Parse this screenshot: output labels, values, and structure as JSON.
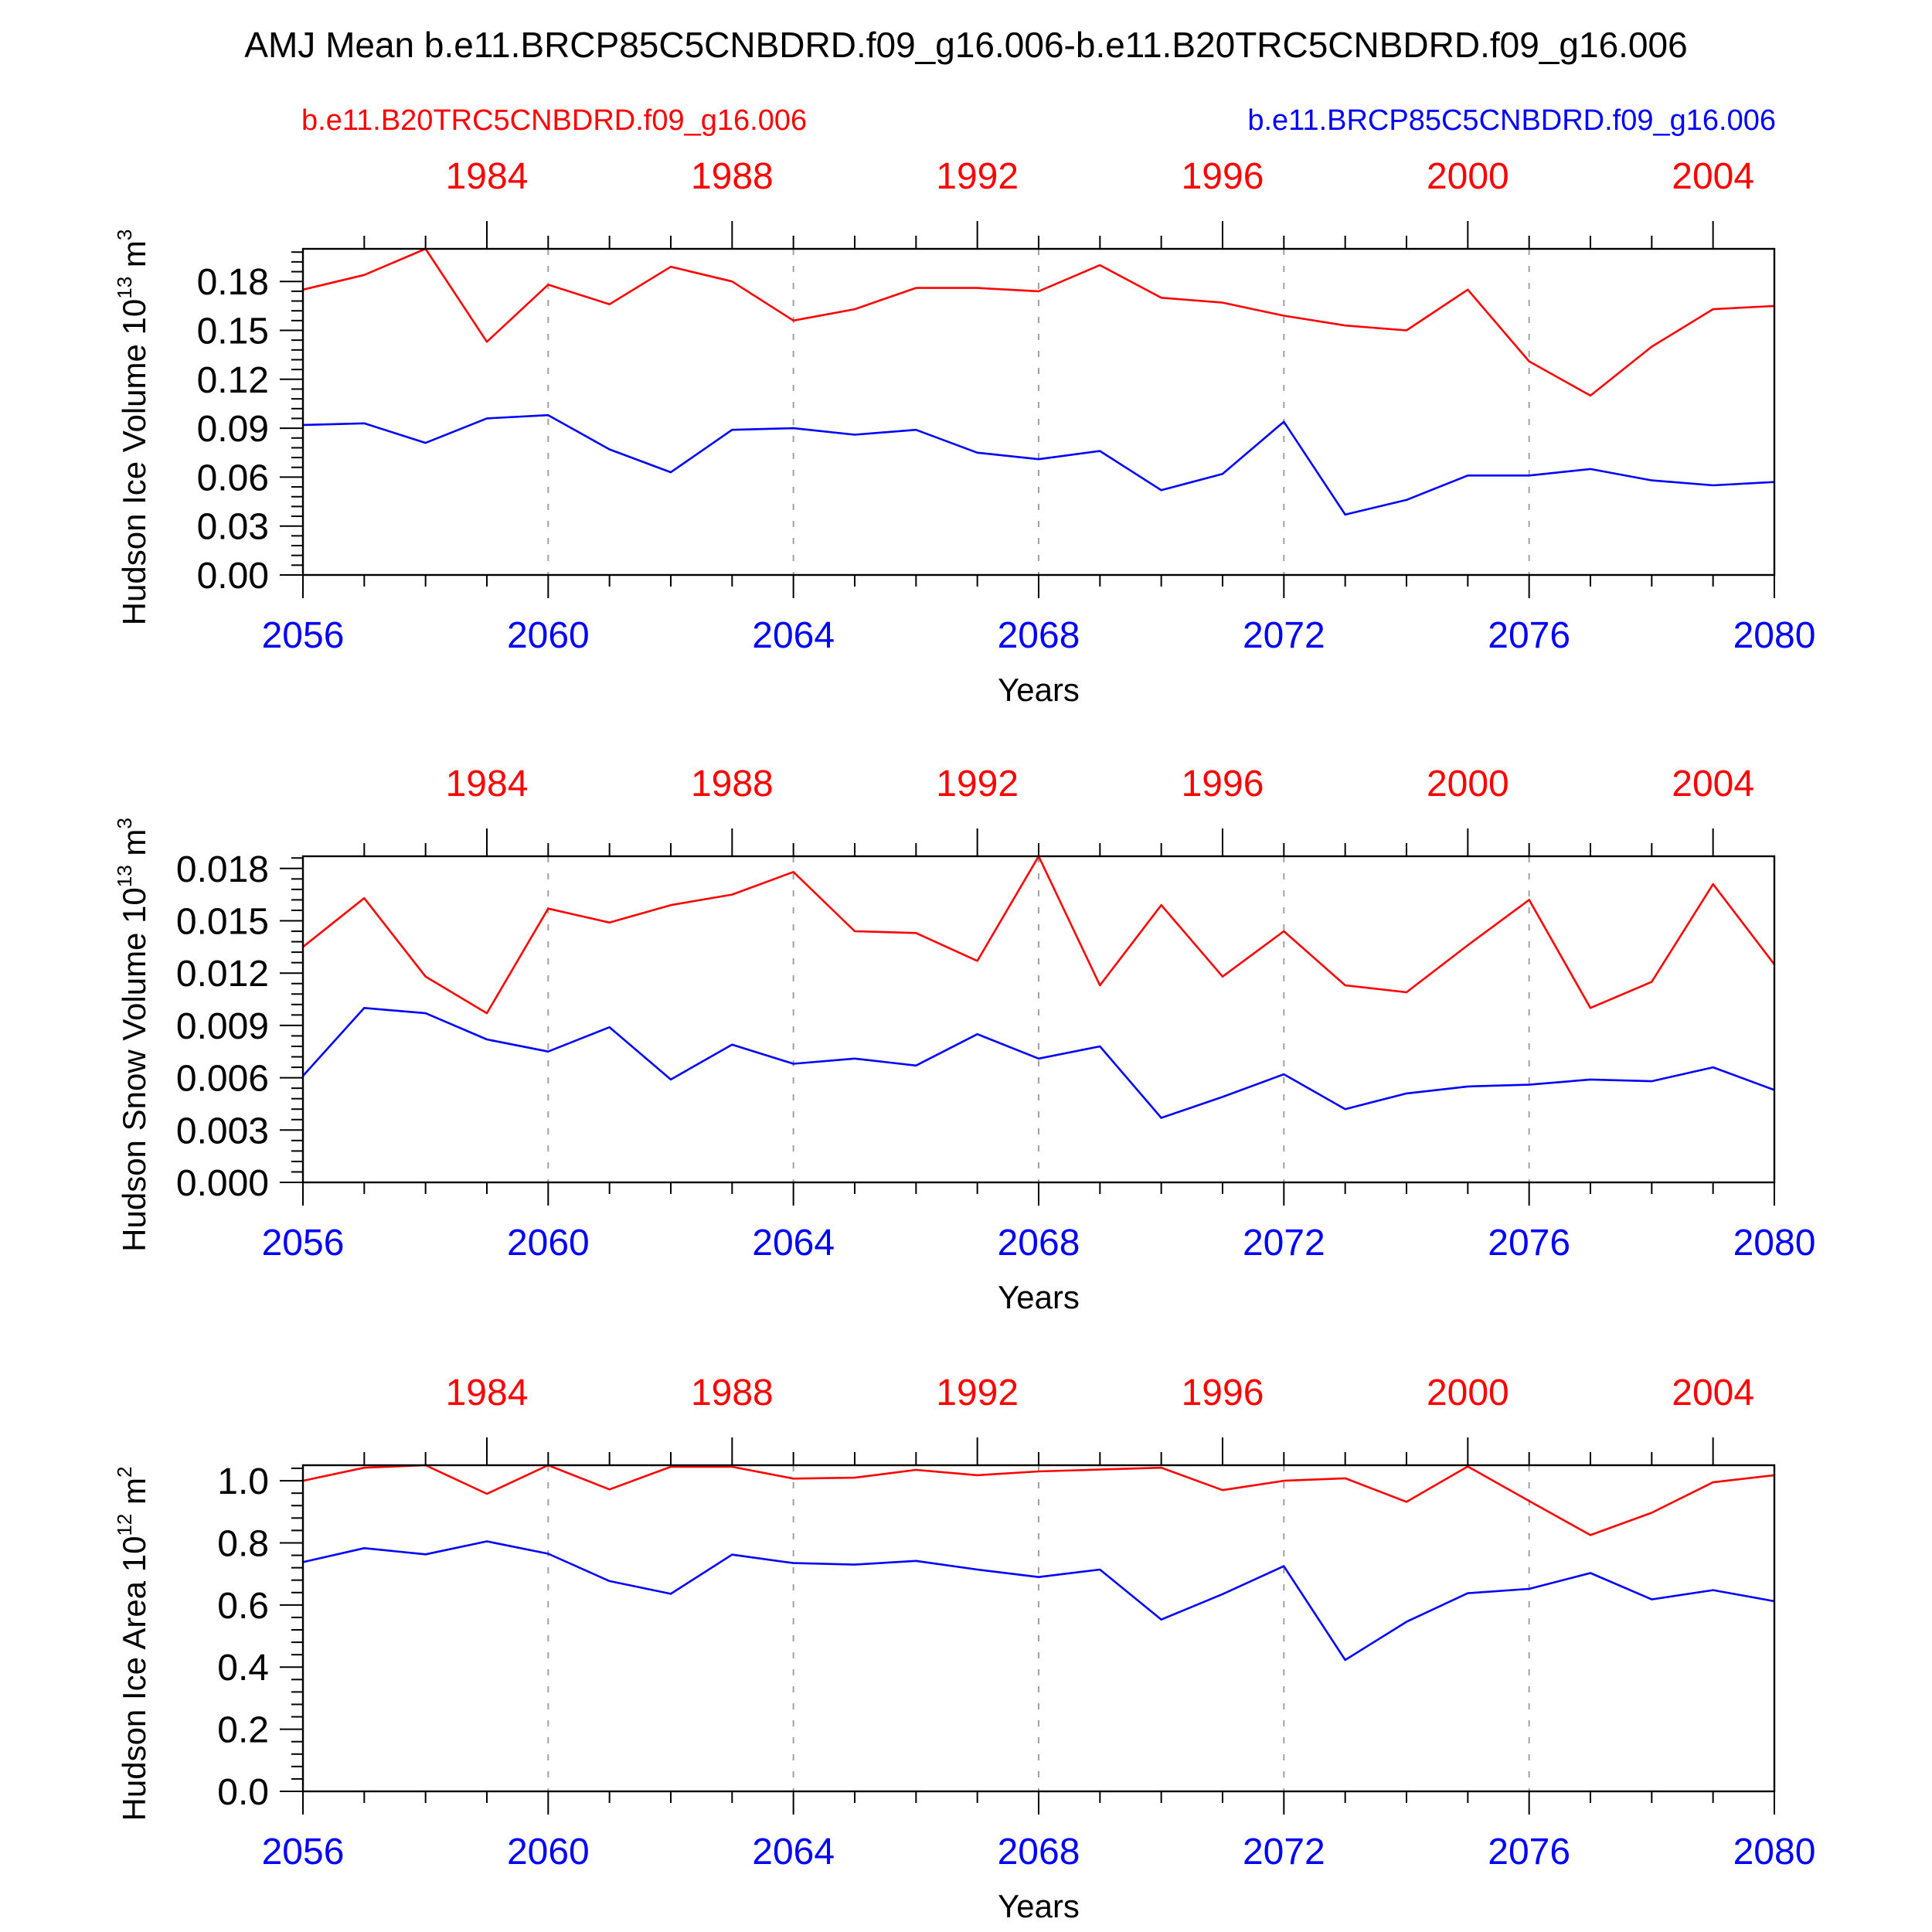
{
  "figure": {
    "title": "AMJ Mean b.e11.BRCP85C5CNBDRD.f09_g16.006-b.e11.B20TRC5CNBDRD.f09_g16.006",
    "left_label": "b.e11.B20TRC5CNBDRD.f09_g16.006",
    "right_label": "b.e11.BRCP85C5CNBDRD.f09_g16.006",
    "colors": {
      "historical": "#ff0000",
      "future": "#0000ff",
      "axis": "#000000",
      "grid": "#a0a0a0"
    }
  },
  "chart_data": [
    {
      "type": "line",
      "title": "",
      "xlabel": "Years",
      "ylabel_main": "Hudson Ice Volume 10",
      "ylabel_exp": "13",
      "ylabel_unit": " m",
      "ylabel_unit_exp": "3",
      "x": [
        2056,
        2057,
        2058,
        2059,
        2060,
        2061,
        2062,
        2063,
        2064,
        2065,
        2066,
        2067,
        2068,
        2069,
        2070,
        2071,
        2072,
        2073,
        2074,
        2075,
        2076,
        2077,
        2078,
        2079,
        2080
      ],
      "xlim": [
        2056,
        2080
      ],
      "top_xlim": [
        1981,
        2005
      ],
      "xticks": [
        "2056",
        "2060",
        "2064",
        "2068",
        "2072",
        "2076",
        "2080"
      ],
      "top_xticks": [
        "1984",
        "1988",
        "1992",
        "1996",
        "2000",
        "2004"
      ],
      "ylim": [
        0,
        0.2
      ],
      "yticks": [
        "0.00",
        "0.03",
        "0.06",
        "0.09",
        "0.12",
        "0.15",
        "0.18"
      ],
      "series": [
        {
          "values": [
            0.175,
            0.184,
            0.2,
            0.143,
            0.178,
            0.166,
            0.189,
            0.18,
            0.156,
            0.163,
            0.176,
            0.176,
            0.174,
            0.19,
            0.17,
            0.167,
            0.159,
            0.153,
            0.15,
            0.175,
            0.131,
            0.11,
            0.14,
            0.163,
            0.165
          ]
        },
        {
          "values": [
            0.092,
            0.093,
            0.081,
            0.096,
            0.098,
            0.077,
            0.063,
            0.089,
            0.09,
            0.086,
            0.089,
            0.075,
            0.071,
            0.076,
            0.052,
            0.062,
            0.094,
            0.037,
            0.046,
            0.061,
            0.061,
            0.065,
            0.058,
            0.055,
            0.057
          ]
        }
      ]
    },
    {
      "type": "line",
      "title": "",
      "xlabel": "Years",
      "ylabel_main": "Hudson Snow Volume 10",
      "ylabel_exp": "13",
      "ylabel_unit": " m",
      "ylabel_unit_exp": "3",
      "x": [
        2056,
        2057,
        2058,
        2059,
        2060,
        2061,
        2062,
        2063,
        2064,
        2065,
        2066,
        2067,
        2068,
        2069,
        2070,
        2071,
        2072,
        2073,
        2074,
        2075,
        2076,
        2077,
        2078,
        2079,
        2080
      ],
      "xlim": [
        2056,
        2080
      ],
      "top_xlim": [
        1981,
        2005
      ],
      "xticks": [
        "2056",
        "2060",
        "2064",
        "2068",
        "2072",
        "2076",
        "2080"
      ],
      "top_xticks": [
        "1984",
        "1988",
        "1992",
        "1996",
        "2000",
        "2004"
      ],
      "ylim": [
        0,
        0.0187
      ],
      "yticks": [
        "0.000",
        "0.003",
        "0.006",
        "0.009",
        "0.012",
        "0.015",
        "0.018"
      ],
      "series": [
        {
          "values": [
            0.0135,
            0.0163,
            0.0118,
            0.0097,
            0.0157,
            0.0149,
            0.0159,
            0.0165,
            0.0178,
            0.0144,
            0.0143,
            0.0127,
            0.0187,
            0.0113,
            0.0159,
            0.0118,
            0.0144,
            0.0113,
            0.0109,
            0.0136,
            0.0162,
            0.01,
            0.0115,
            0.0171,
            0.0125
          ]
        },
        {
          "values": [
            0.0061,
            0.01,
            0.0097,
            0.0082,
            0.0075,
            0.0089,
            0.0059,
            0.0079,
            0.0068,
            0.0071,
            0.0067,
            0.0085,
            0.0071,
            0.0078,
            0.0037,
            0.0049,
            0.0062,
            0.0042,
            0.0051,
            0.0055,
            0.0056,
            0.0059,
            0.0058,
            0.0066,
            0.0053
          ]
        }
      ]
    },
    {
      "type": "line",
      "title": "",
      "xlabel": "Years",
      "ylabel_main": "Hudson Ice Area 10",
      "ylabel_exp": "12",
      "ylabel_unit": " m",
      "ylabel_unit_exp": "2",
      "x": [
        2056,
        2057,
        2058,
        2059,
        2060,
        2061,
        2062,
        2063,
        2064,
        2065,
        2066,
        2067,
        2068,
        2069,
        2070,
        2071,
        2072,
        2073,
        2074,
        2075,
        2076,
        2077,
        2078,
        2079,
        2080
      ],
      "xlim": [
        2056,
        2080
      ],
      "top_xlim": [
        1981,
        2005
      ],
      "xticks": [
        "2056",
        "2060",
        "2064",
        "2068",
        "2072",
        "2076",
        "2080"
      ],
      "top_xticks": [
        "1984",
        "1988",
        "1992",
        "1996",
        "2000",
        "2004"
      ],
      "ylim": [
        0,
        1.05
      ],
      "yticks": [
        "0.0",
        "0.2",
        "0.4",
        "0.6",
        "0.8",
        "1.0"
      ],
      "series": [
        {
          "values": [
            1.0,
            1.042,
            1.05,
            0.958,
            1.05,
            0.972,
            1.045,
            1.045,
            1.007,
            1.01,
            1.035,
            1.018,
            1.03,
            1.036,
            1.042,
            0.97,
            1.0,
            1.008,
            0.932,
            1.046,
            0.935,
            0.825,
            0.897,
            0.995,
            1.018
          ]
        },
        {
          "values": [
            0.738,
            0.783,
            0.763,
            0.805,
            0.765,
            0.677,
            0.636,
            0.762,
            0.735,
            0.73,
            0.742,
            0.714,
            0.69,
            0.714,
            0.553,
            0.635,
            0.725,
            0.423,
            0.546,
            0.638,
            0.652,
            0.703,
            0.618,
            0.648,
            0.612
          ]
        }
      ]
    }
  ]
}
